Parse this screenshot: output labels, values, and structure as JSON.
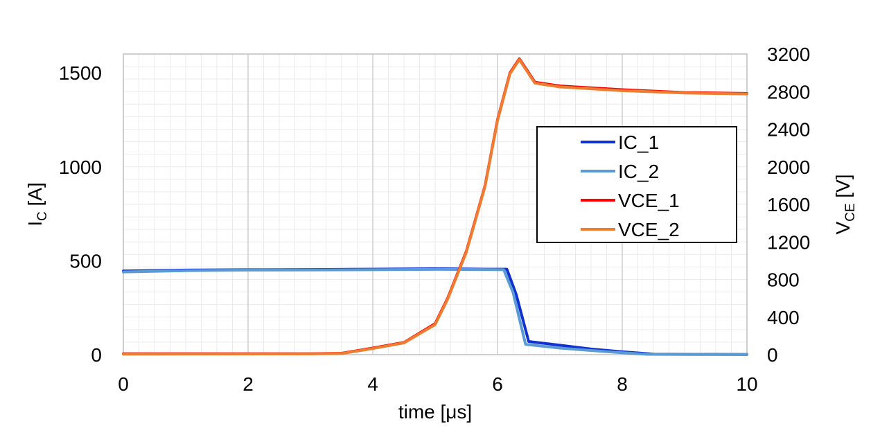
{
  "chart_data": {
    "type": "line",
    "xlabel": "time [μs]",
    "ylabel": {
      "main": "I",
      "sub": "C",
      "unit": " [A]"
    },
    "y2label": {
      "main": "V",
      "sub": "CE",
      "unit": " [V]"
    },
    "xlim": [
      0,
      10
    ],
    "ylim": [
      0,
      1600
    ],
    "y2lim": [
      0,
      3200
    ],
    "xticks": [
      "0",
      "2",
      "4",
      "6",
      "8",
      "10"
    ],
    "yticks": [
      "0",
      "500",
      "1000",
      "1500"
    ],
    "y2ticks": [
      "0",
      "400",
      "800",
      "1200",
      "1600",
      "2000",
      "2400",
      "2800",
      "3200"
    ],
    "grid": true,
    "legend_position": "right",
    "series": [
      {
        "name": "IC_1",
        "axis": "left",
        "color": "#1030d0",
        "x": [
          0,
          1,
          2,
          3,
          4,
          5,
          5.8,
          6.15,
          6.3,
          6.5,
          7,
          7.5,
          8,
          8.5,
          9,
          10
        ],
        "y": [
          445,
          450,
          452,
          453,
          455,
          457,
          455,
          455,
          320,
          70,
          50,
          30,
          15,
          3,
          2,
          1
        ]
      },
      {
        "name": "IC_2",
        "axis": "left",
        "color": "#5b9bd5",
        "x": [
          0,
          1,
          2,
          3,
          4,
          5,
          5.8,
          6.1,
          6.25,
          6.45,
          7,
          7.5,
          8,
          8.4,
          9,
          10
        ],
        "y": [
          440,
          447,
          450,
          451,
          452,
          454,
          453,
          452,
          330,
          55,
          35,
          22,
          10,
          2,
          1,
          0
        ]
      },
      {
        "name": "VCE_1",
        "axis": "right",
        "color": "#ff0000",
        "x": [
          0,
          3,
          3.5,
          4,
          4.5,
          5,
          5.2,
          5.5,
          5.8,
          6,
          6.2,
          6.35,
          6.45,
          6.6,
          7,
          8,
          9,
          10
        ],
        "y": [
          10,
          10,
          15,
          70,
          130,
          330,
          600,
          1100,
          1800,
          2500,
          3000,
          3150,
          3050,
          2900,
          2860,
          2820,
          2790,
          2780
        ]
      },
      {
        "name": "VCE_2",
        "axis": "right",
        "color": "#ed7d31",
        "x": [
          0,
          3,
          3.5,
          4,
          4.5,
          5,
          5.2,
          5.5,
          5.8,
          6,
          6.2,
          6.35,
          6.45,
          6.6,
          7,
          8,
          9,
          10
        ],
        "y": [
          5,
          8,
          12,
          65,
          125,
          320,
          590,
          1090,
          1790,
          2490,
          2990,
          3140,
          3040,
          2890,
          2850,
          2810,
          2785,
          2775
        ]
      }
    ]
  }
}
